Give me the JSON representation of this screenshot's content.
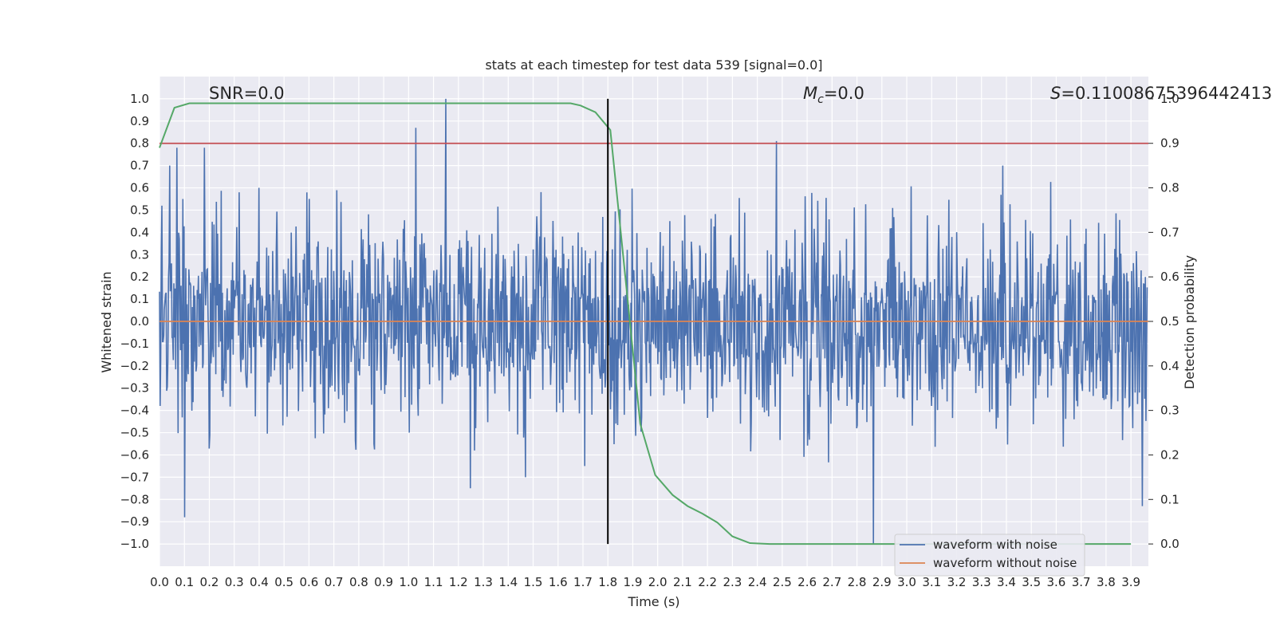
{
  "chart_data": {
    "type": "line",
    "title": "stats at each timestep for test data 539 [signal=0.0]",
    "xlabel": "Time (s)",
    "ylabel": "Whitened strain",
    "y2label": "Detection probability",
    "xlim": [
      0.0,
      3.97
    ],
    "ylim": [
      -1.1,
      1.1
    ],
    "y2lim": [
      -0.05,
      1.05
    ],
    "x_ticks": [
      "0.0",
      "0.1",
      "0.2",
      "0.3",
      "0.4",
      "0.5",
      "0.6",
      "0.7",
      "0.8",
      "0.9",
      "1.0",
      "1.1",
      "1.2",
      "1.3",
      "1.4",
      "1.5",
      "1.6",
      "1.7",
      "1.8",
      "1.9",
      "2.0",
      "2.1",
      "2.2",
      "2.3",
      "2.4",
      "2.5",
      "2.6",
      "2.7",
      "2.8",
      "2.9",
      "3.0",
      "3.1",
      "3.2",
      "3.3",
      "3.4",
      "3.5",
      "3.6",
      "3.7",
      "3.8",
      "3.9"
    ],
    "y_ticks": [
      "1.0",
      "0.9",
      "0.8",
      "0.7",
      "0.6",
      "0.5",
      "0.4",
      "0.3",
      "0.2",
      "0.1",
      "0.0",
      "−0.1",
      "−0.2",
      "−0.3",
      "−0.4",
      "−0.5",
      "−0.6",
      "−0.7",
      "−0.8",
      "−0.9",
      "−1.0"
    ],
    "y2_ticks": [
      "1.0",
      "0.9",
      "0.8",
      "0.7",
      "0.6",
      "0.5",
      "0.4",
      "0.3",
      "0.2",
      "0.1",
      "0.0"
    ],
    "grid": true,
    "legend_placement": "lower-right",
    "annotations": {
      "snr": "SNR=0.0",
      "mc_symbol": "M",
      "mc_sub": "c",
      "mc_value": "=0.0",
      "s_symbol": "S",
      "s_value": "=0.11008675396442413"
    },
    "vline_x": 1.8,
    "threshold_y2": 0.9,
    "series": [
      {
        "name": "waveform with noise",
        "color": "#4c72b0",
        "values_summary": "noisy whitened strain, amplitude mostly within ±0.5 with spikes to 1.0 and −1.0",
        "spikes": [
          {
            "x": 0.01,
            "y": 0.52
          },
          {
            "x": 0.04,
            "y": 0.7
          },
          {
            "x": 0.07,
            "y": 0.78
          },
          {
            "x": 0.1,
            "y": -0.88
          },
          {
            "x": 0.18,
            "y": 0.78
          },
          {
            "x": 0.32,
            "y": 0.58
          },
          {
            "x": 0.4,
            "y": 0.6
          },
          {
            "x": 1.03,
            "y": 0.87
          },
          {
            "x": 1.15,
            "y": 1.0
          },
          {
            "x": 1.25,
            "y": -0.75
          },
          {
            "x": 1.47,
            "y": -0.7
          },
          {
            "x": 1.71,
            "y": -0.65
          },
          {
            "x": 2.48,
            "y": 0.81
          },
          {
            "x": 2.87,
            "y": -1.0
          },
          {
            "x": 3.39,
            "y": 0.7
          },
          {
            "x": 3.95,
            "y": -0.83
          }
        ]
      },
      {
        "name": "waveform without noise",
        "color": "#dd8452",
        "x": [
          0.0,
          3.97
        ],
        "y": [
          0.0,
          0.0
        ]
      },
      {
        "name": "",
        "color": "#55a868",
        "axis": "right",
        "x": [
          0.0,
          0.06,
          0.12,
          0.18,
          1.5,
          1.6,
          1.65,
          1.69,
          1.75,
          1.81,
          1.87,
          1.93,
          1.99,
          2.06,
          2.12,
          2.18,
          2.24,
          2.3,
          2.37,
          2.45,
          2.6,
          3.9
        ],
        "y": [
          0.89,
          0.98,
          0.99,
          0.99,
          0.99,
          0.99,
          0.99,
          0.985,
          0.97,
          0.93,
          0.6,
          0.27,
          0.155,
          0.11,
          0.085,
          0.068,
          0.048,
          0.017,
          0.002,
          0.0,
          0.0,
          0.0
        ]
      }
    ]
  }
}
